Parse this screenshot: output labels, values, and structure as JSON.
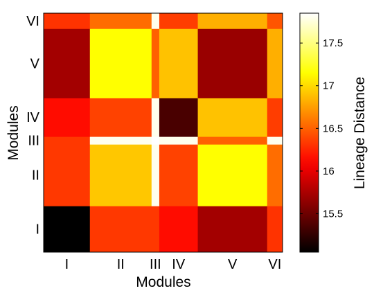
{
  "chart_data": {
    "type": "heatmap",
    "title": "",
    "xlabel": "Modules",
    "ylabel": "Modules",
    "colorbar_label": "Lineage Distance",
    "colormap": "hot",
    "x_modules": [
      "I",
      "II",
      "III",
      "IV",
      "V",
      "VI"
    ],
    "y_modules": [
      "I",
      "II",
      "III",
      "IV",
      "V",
      "VI"
    ],
    "module_sizes": [
      6,
      8,
      1,
      5,
      9,
      2
    ],
    "color_range": [
      15.05,
      17.85
    ],
    "colorbar_ticks": [
      "15.5",
      "16",
      "16.5",
      "17",
      "17.5"
    ],
    "values": [
      [
        15.05,
        16.33,
        16.33,
        16.15,
        15.72,
        16.31
      ],
      [
        16.33,
        16.92,
        17.8,
        16.37,
        17.15,
        16.55
      ],
      [
        16.33,
        17.8,
        17.85,
        17.8,
        16.5,
        17.8
      ],
      [
        16.15,
        16.37,
        17.8,
        15.35,
        16.9,
        16.35
      ],
      [
        15.72,
        17.15,
        16.5,
        16.9,
        15.68,
        16.82
      ],
      [
        16.31,
        16.55,
        17.8,
        16.35,
        16.82,
        16.45
      ]
    ]
  }
}
